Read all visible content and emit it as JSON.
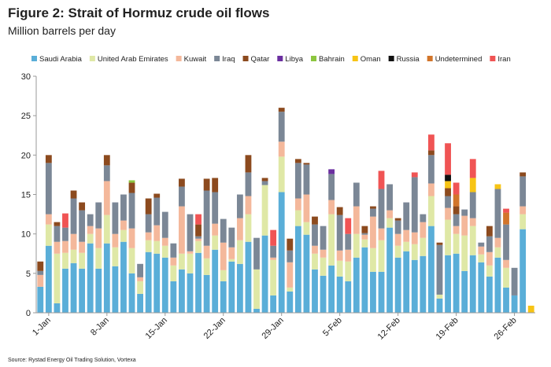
{
  "chart_data": {
    "type": "stacked-bar",
    "title": "Figure 2: Strait of Hormuz crude oil flows",
    "subtitle": "Million barrels per day",
    "source": "Source: Rystad Energy Oil Trading Solution, Vortexa",
    "categories": [
      null,
      "1-Jan",
      null,
      null,
      null,
      null,
      null,
      null,
      "8-Jan",
      null,
      null,
      null,
      null,
      null,
      null,
      "15-Jan",
      null,
      null,
      null,
      null,
      null,
      null,
      "22-Jan",
      null,
      null,
      null,
      null,
      null,
      null,
      "29-Jan",
      null,
      null,
      null,
      null,
      null,
      null,
      "5-Feb",
      null,
      null,
      null,
      null,
      null,
      null,
      "12-Feb",
      null,
      null,
      null,
      null,
      null,
      null,
      "19-Feb",
      null,
      null,
      null,
      null,
      null,
      null,
      "26-Feb",
      null,
      null
    ],
    "ylim": [
      0,
      30
    ],
    "yticks": [
      0,
      5,
      10,
      15,
      20,
      25,
      30
    ],
    "grid": false,
    "series": [
      {
        "name": "Saudi Arabia",
        "color": "#5aaed8",
        "values": [
          3.3,
          8.5,
          1.2,
          5.6,
          6.3,
          5.6,
          8.8,
          5.6,
          8.8,
          5.9,
          9,
          5,
          2.4,
          7.7,
          7.5,
          7,
          4,
          5.5,
          5,
          7.6,
          4.8,
          8,
          4,
          6.5,
          6.2,
          9,
          0.5,
          9.8,
          2.2,
          15.3,
          2.7,
          11,
          9.9,
          5.5,
          4.7,
          6,
          4.6,
          4,
          7,
          8.3,
          5.2,
          5.2,
          10.8,
          7,
          7.8,
          6.7,
          7.2,
          11,
          1.8,
          7.3,
          7.5,
          5.3,
          7.3,
          6.4,
          4.6,
          7,
          3.2,
          2.2,
          10.6,
          0
        ]
      },
      {
        "name": "United Arab Emirates",
        "color": "#dfe8a6",
        "values": [
          0,
          2.7,
          6.3,
          2,
          1.7,
          2,
          1.2,
          2.6,
          3.6,
          2.4,
          1.5,
          3.2,
          1.6,
          1.5,
          1.6,
          1.5,
          2,
          2,
          2.5,
          1.5,
          2.1,
          1.8,
          1.4,
          0.3,
          3,
          3.5,
          5,
          6.4,
          4.5,
          4.5,
          0.5,
          2,
          1.6,
          2,
          2.3,
          6.5,
          2,
          2.5,
          3,
          1,
          3,
          4,
          1.2,
          1.5,
          1.2,
          2,
          2.3,
          3.8,
          0.5,
          4.5,
          2.5,
          4.5,
          3.7,
          1,
          1.4,
          1.3,
          2.5,
          0,
          1.9,
          0
        ]
      },
      {
        "name": "Kuwait",
        "color": "#f4b89b",
        "values": [
          1.5,
          1.3,
          1.5,
          1.5,
          2,
          1.4,
          1,
          2.5,
          4.3,
          1.7,
          1.2,
          2.5,
          0.5,
          1,
          2,
          1,
          1,
          6,
          0.3,
          0.3,
          1.6,
          1.5,
          3.5,
          1.5,
          2.8,
          2.3,
          0,
          0,
          0.3,
          1.9,
          3.2,
          1.5,
          3.5,
          1,
          1,
          1.8,
          1.3,
          1.5,
          3.5,
          0.6,
          4,
          1.5,
          1,
          1.5,
          1.5,
          1.5,
          2,
          1.6,
          0,
          1.5,
          1,
          2.5,
          1,
          1,
          1.7,
          1.2,
          1,
          0,
          1,
          0
        ]
      },
      {
        "name": "Iraq",
        "color": "#7b8796",
        "values": [
          0.5,
          6.5,
          2,
          1.7,
          4.5,
          4,
          1.5,
          3.3,
          2,
          4,
          3.3,
          4.5,
          1.7,
          2.3,
          3.5,
          3.3,
          1.8,
          2.5,
          4.7,
          0.3,
          7,
          4,
          3,
          2.5,
          3,
          3,
          4,
          0.5,
          1.5,
          3.8,
          1.5,
          4.5,
          3.8,
          2.7,
          3,
          3.3,
          4.5,
          2,
          3,
          0.2,
          1,
          5,
          3.3,
          1.7,
          3.5,
          7,
          1,
          3.6,
          6.3,
          1.5,
          1.5,
          0.8,
          3.3,
          0.5,
          2,
          6.2,
          4.5,
          3.5,
          3.8,
          0
        ]
      },
      {
        "name": "Qatar",
        "color": "#8c4a1e",
        "values": [
          1.2,
          1,
          0.5,
          0,
          1,
          1,
          0,
          0,
          1.3,
          0,
          0,
          1.3,
          0,
          2,
          0.5,
          0,
          0,
          1,
          0,
          1.5,
          1.5,
          1.8,
          0,
          0,
          0,
          2.2,
          0,
          0.4,
          0,
          0.5,
          1.5,
          0.5,
          0.2,
          1,
          0,
          0,
          1,
          0,
          0,
          0.9,
          0.3,
          0,
          0,
          0.3,
          0,
          0,
          0,
          0.6,
          0.3,
          1,
          1,
          0,
          0,
          0,
          1.3,
          0,
          0,
          0,
          0.5,
          0
        ]
      },
      {
        "name": "Libya",
        "color": "#6b2fa0",
        "values": [
          0,
          0,
          0,
          0,
          0,
          0,
          0,
          0,
          0,
          0,
          0,
          0,
          0,
          0,
          0,
          0,
          0,
          0,
          0,
          0,
          0,
          0,
          0,
          0,
          0,
          0,
          0,
          0,
          0,
          0,
          0,
          0,
          0,
          0,
          0,
          0.6,
          0,
          0,
          0,
          0,
          0,
          0,
          0,
          0,
          0,
          0,
          0,
          0,
          0,
          0,
          0,
          0,
          0,
          0,
          0,
          0,
          0,
          0,
          0,
          0
        ]
      },
      {
        "name": "Bahrain",
        "color": "#8cc63f",
        "values": [
          0,
          0,
          0,
          0,
          0,
          0,
          0,
          0,
          0,
          0,
          0,
          0.3,
          0,
          0,
          0,
          0,
          0,
          0,
          0,
          0,
          0,
          0,
          0,
          0,
          0,
          0,
          0,
          0,
          0,
          0,
          0,
          0,
          0,
          0,
          0,
          0,
          0,
          0,
          0,
          0,
          0,
          0,
          0,
          0,
          0,
          0,
          0,
          0,
          0,
          0,
          0,
          0,
          0,
          0,
          0,
          0,
          0,
          0,
          0,
          0
        ]
      },
      {
        "name": "Oman",
        "color": "#f7c415",
        "values": [
          0,
          0,
          0,
          0,
          0,
          0,
          0,
          0,
          0,
          0,
          0,
          0,
          0,
          0,
          0,
          0,
          0,
          0,
          0,
          0,
          0,
          0,
          0,
          0,
          0,
          0,
          0,
          0,
          0,
          0,
          0,
          0,
          0,
          0,
          0,
          0,
          0,
          0,
          0,
          0,
          0,
          0,
          0,
          0,
          0,
          0,
          0,
          0,
          0,
          0.9,
          0,
          0,
          1.8,
          0,
          0,
          0.6,
          0,
          0,
          0,
          0.9
        ]
      },
      {
        "name": "Russia",
        "color": "#111111",
        "values": [
          0,
          0,
          0,
          0,
          0,
          0,
          0,
          0,
          0,
          0,
          0,
          0,
          0,
          0,
          0,
          0,
          0,
          0,
          0,
          0,
          0,
          0,
          0,
          0,
          0,
          0,
          0,
          0,
          0,
          0,
          0,
          0,
          0,
          0,
          0,
          0,
          0,
          0,
          0,
          0,
          0,
          0,
          0,
          0,
          0,
          0,
          0,
          0,
          0,
          0.8,
          0,
          0,
          0,
          0,
          0,
          0,
          0,
          0,
          0,
          0
        ]
      },
      {
        "name": "Undetermined",
        "color": "#d2752a",
        "values": [
          0,
          0,
          0,
          0,
          0,
          0,
          0,
          0,
          0,
          0,
          0,
          0,
          0,
          0,
          0,
          0,
          0,
          0,
          0,
          0,
          0,
          0,
          0,
          0,
          0,
          0,
          0,
          0,
          0,
          0,
          0,
          0,
          0,
          0,
          0,
          0,
          0,
          0,
          0,
          0,
          0,
          0,
          0,
          0,
          0,
          0,
          0,
          0,
          0,
          0,
          1.5,
          0,
          0,
          0,
          0,
          0,
          1.5,
          0,
          0,
          0
        ]
      },
      {
        "name": "Iran",
        "color": "#f05454",
        "values": [
          0,
          0,
          0,
          1.8,
          0,
          0,
          0,
          0,
          0,
          0,
          0,
          0,
          0,
          0,
          0,
          0,
          0,
          0,
          0,
          1.3,
          0,
          0,
          0,
          0,
          0,
          0,
          0,
          0,
          2,
          0,
          0,
          0,
          0,
          0,
          0,
          0,
          0,
          2,
          0,
          0,
          0,
          2.3,
          0,
          0,
          0,
          0.6,
          0,
          2,
          0,
          4,
          1.5,
          0,
          2.4,
          0,
          0,
          0,
          0.5,
          0,
          0,
          0
        ]
      }
    ]
  }
}
